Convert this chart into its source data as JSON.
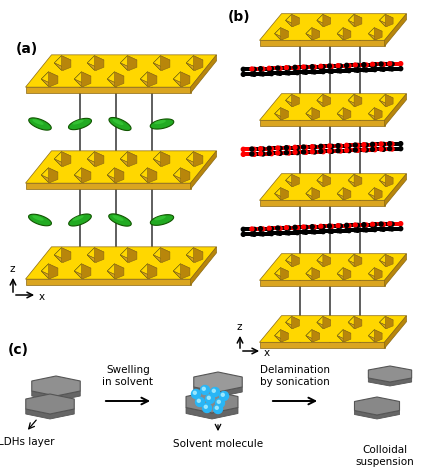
{
  "panel_a_label": "(a)",
  "panel_b_label": "(b)",
  "panel_c_label": "(c)",
  "yellow": "#FFD700",
  "yellow_mid": "#DAA520",
  "yellow_dark": "#B8860B",
  "green_dark": "#2D6E00",
  "green_med": "#3D8B00",
  "black": "#000000",
  "red": "#CC0000",
  "gray": "#808080",
  "gray_light": "#A8A8A8",
  "gray_dark": "#606060",
  "cyan": "#29B6F6",
  "white": "#FFFFFF",
  "label_ldhs": "LDHs layer",
  "label_solvent": "Solvent molecule",
  "label_colloidal": "Colloidal\nsuspension",
  "label_swelling": "Swelling\nin solvent",
  "label_delamination": "Delamination\nby sonication",
  "fig_width": 4.37,
  "fig_height": 4.77,
  "dpi": 100
}
